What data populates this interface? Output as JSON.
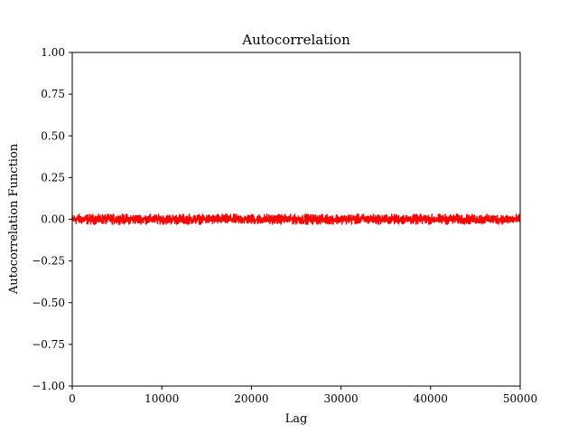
{
  "chart_data": {
    "type": "line",
    "title": "Autocorrelation",
    "xlabel": "Lag",
    "ylabel": "Autocorrelation Function",
    "xlim": [
      0,
      50000
    ],
    "ylim": [
      -1.0,
      1.0
    ],
    "x_ticks": [
      0,
      10000,
      20000,
      30000,
      40000,
      50000
    ],
    "x_tick_labels": [
      "0",
      "10000",
      "20000",
      "30000",
      "40000",
      "50000"
    ],
    "y_ticks": [
      1.0,
      0.75,
      0.5,
      0.25,
      0.0,
      -0.25,
      -0.5,
      -0.75,
      -1.0
    ],
    "y_tick_labels": [
      "1.00",
      "0.75",
      "0.50",
      "0.25",
      "0.00",
      "−0.25",
      "−0.50",
      "−0.75",
      "−1.00"
    ],
    "grid": false,
    "series": [
      {
        "color": "#ff0000",
        "x_range": [
          0,
          50000
        ],
        "approx_mean": 0.0,
        "approx_noise_band": [
          -0.03,
          0.03
        ]
      }
    ]
  }
}
